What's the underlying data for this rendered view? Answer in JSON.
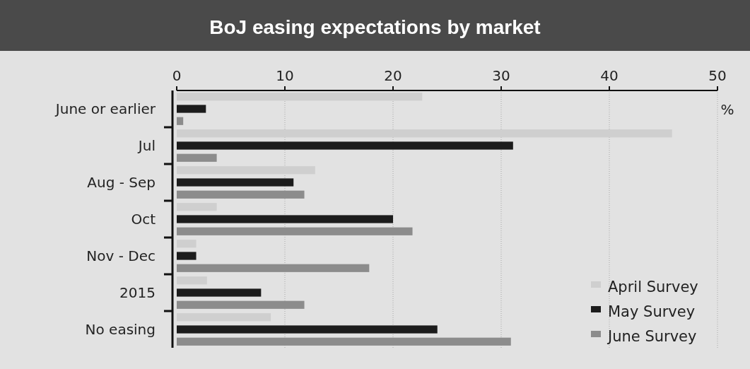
{
  "chart_data": {
    "type": "bar",
    "orientation": "horizontal",
    "title": "BoJ easing expectations by market",
    "xlabel": "%",
    "categories": [
      "June or earlier",
      "Jul",
      "Aug - Sep",
      "Oct",
      "Nov - Dec",
      "2015",
      "No easing"
    ],
    "series": [
      {
        "name": "April Survey",
        "color": "#cfcfcf",
        "values": [
          22.7,
          45.8,
          12.8,
          3.7,
          1.8,
          2.8,
          8.7
        ]
      },
      {
        "name": "May Survey",
        "color": "#1c1c1c",
        "values": [
          2.7,
          31.1,
          10.8,
          20.0,
          1.8,
          7.8,
          24.1
        ]
      },
      {
        "name": "June Survey",
        "color": "#8c8c8c",
        "values": [
          0.6,
          3.7,
          11.8,
          21.8,
          17.8,
          11.8,
          30.9
        ]
      }
    ],
    "xlim": [
      0,
      50
    ],
    "xticks": [
      0,
      10,
      20,
      30,
      40,
      50
    ],
    "grid": "x",
    "legend": "bottom right"
  }
}
